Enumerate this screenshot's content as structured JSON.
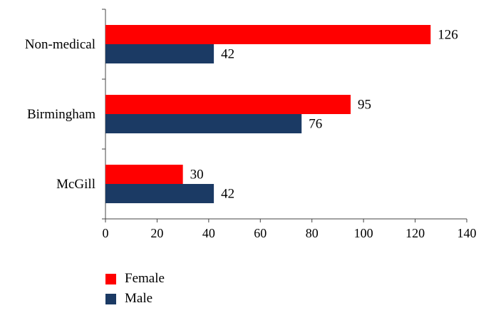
{
  "chart_data": {
    "type": "bar",
    "orientation": "horizontal",
    "categories": [
      "Non-medical",
      "Birmingham",
      "McGill"
    ],
    "series": [
      {
        "name": "Female",
        "color": "#ff0000",
        "values": [
          126,
          95,
          30
        ]
      },
      {
        "name": "Male",
        "color": "#1b3a64",
        "values": [
          42,
          76,
          42
        ]
      }
    ],
    "xlim": [
      0,
      140
    ],
    "xticks": [
      0,
      20,
      40,
      60,
      80,
      100,
      120,
      140
    ],
    "title": "",
    "xlabel": "",
    "ylabel": "",
    "grid": false,
    "legend_position": "bottom-left",
    "data_labels": true
  }
}
